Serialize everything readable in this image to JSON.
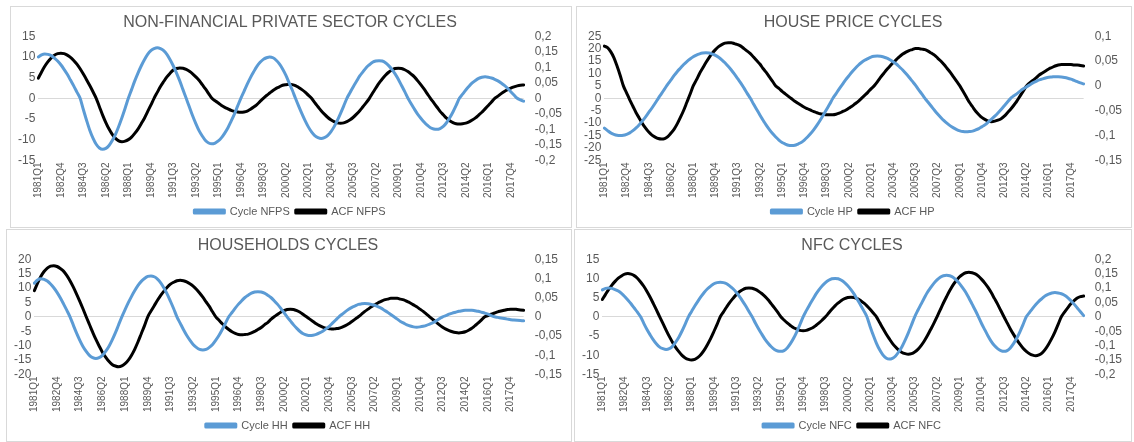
{
  "chart_data": [
    {
      "type": "line",
      "title": "NON-FINANCIAL PRIVATE SECTOR CYCLES",
      "legend": "bottom",
      "marker": "none",
      "categories": [
        "1981Q1",
        null,
        null,
        null,
        null,
        null,
        null,
        "1982Q4",
        null,
        null,
        null,
        null,
        null,
        null,
        "1984Q3",
        null,
        null,
        null,
        null,
        null,
        null,
        "1986Q2",
        null,
        null,
        null,
        null,
        null,
        null,
        "1988Q1",
        null,
        null,
        null,
        null,
        null,
        null,
        "1989Q4",
        null,
        null,
        null,
        null,
        null,
        null,
        "1991Q3",
        null,
        null,
        null,
        null,
        null,
        null,
        "1993Q2",
        null,
        null,
        null,
        null,
        null,
        null,
        "1995Q1",
        null,
        null,
        null,
        null,
        null,
        null,
        "1996Q4",
        null,
        null,
        null,
        null,
        null,
        null,
        "1998Q3",
        null,
        null,
        null,
        null,
        null,
        null,
        "2000Q2",
        null,
        null,
        null,
        null,
        null,
        null,
        "2002Q1",
        null,
        null,
        null,
        null,
        null,
        null,
        "2003Q4",
        null,
        null,
        null,
        null,
        null,
        null,
        "2005Q3",
        null,
        null,
        null,
        null,
        null,
        null,
        "2007Q2",
        null,
        null,
        null,
        null,
        null,
        null,
        "2009Q1",
        null,
        null,
        null,
        null,
        null,
        null,
        "2010Q4",
        null,
        null,
        null,
        null,
        null,
        null,
        "2012Q3",
        null,
        null,
        null,
        null,
        null,
        null,
        "2014Q2",
        null,
        null,
        null,
        null,
        null,
        null,
        "2016Q1",
        null,
        null,
        null,
        null,
        null,
        null,
        "2017Q4",
        null,
        null,
        null,
        null
      ],
      "ylim": [
        -15,
        15
      ],
      "yticks": [
        -15,
        -10,
        -5,
        0,
        5,
        10,
        15
      ],
      "y2lim": [
        -0.2,
        0.2
      ],
      "y2ticks": [
        {
          "value": -0.2,
          "label": "-0,2"
        },
        {
          "value": -0.15,
          "label": "-0,15"
        },
        {
          "value": -0.1,
          "label": "-0,1"
        },
        {
          "value": -0.05,
          "label": "-0,05"
        },
        {
          "value": 0,
          "label": "0"
        },
        {
          "value": 0.05,
          "label": "0,05"
        },
        {
          "value": 0.1,
          "label": "0,1"
        },
        {
          "value": 0.15,
          "label": "0,15"
        },
        {
          "value": 0.2,
          "label": "0,2"
        }
      ],
      "series": [
        {
          "name": "Cycle NFPS",
          "color": "#5b9bd5",
          "values": [
            10,
            10.5,
            10.7,
            10.6,
            10.3,
            9.7,
            9.0,
            8.1,
            7.0,
            5.8,
            4.4,
            3.0,
            1.5,
            0,
            -2.7,
            -5.3,
            -7.7,
            -9.6,
            -11.1,
            -12.0,
            -12.3,
            -12.1,
            -11.4,
            -10.2,
            -8.7,
            -6.8,
            -4.7,
            -2.4,
            0,
            2.1,
            4.2,
            6.1,
            7.8,
            9.3,
            10.6,
            11.5,
            12.0,
            12.2,
            12.0,
            11.5,
            10.6,
            9.3,
            7.8,
            6.1,
            4.2,
            2.1,
            0,
            -2.1,
            -4.2,
            -6.1,
            -7.8,
            -9.1,
            -10.2,
            -10.8,
            -11,
            -10.8,
            -10.3,
            -9.5,
            -8.4,
            -7.1,
            -5.5,
            -3.8,
            -1.9,
            0,
            1.7,
            3.4,
            5.0,
            6.4,
            7.7,
            8.7,
            9.4,
            9.8,
            10,
            9.8,
            9.2,
            8.3,
            7.1,
            5.6,
            3.8,
            2.0,
            0,
            -1.9,
            -3.7,
            -5.4,
            -6.9,
            -8.1,
            -9.0,
            -9.5,
            -9.7,
            -9.5,
            -9.0,
            -8.1,
            -6.9,
            -5.4,
            -3.7,
            -1.9,
            0,
            1.4,
            2.8,
            4.1,
            5.4,
            6.4,
            7.4,
            8.1,
            8.7,
            9.0,
            9.1,
            9.0,
            8.6,
            7.9,
            7.0,
            5.9,
            4.6,
            3.1,
            1.6,
            0,
            -1.3,
            -2.6,
            -3.8,
            -4.8,
            -5.7,
            -6.5,
            -7.1,
            -7.4,
            -7.5,
            -7.3,
            -6.8,
            -5.9,
            -4.7,
            -3.3,
            -1.7,
            0,
            1.0,
            2.0,
            2.9,
            3.7,
            4.3,
            4.8,
            5.1,
            5.2,
            5.1,
            4.9,
            4.6,
            4.2,
            3.7,
            3.1,
            2.4,
            1.6,
            0.8,
            0,
            -0.4,
            -0.7
          ]
        },
        {
          "name": "ACF NFPS",
          "color": "#000000",
          "axis": "y2",
          "values": [
            0.065,
            0.085,
            0.103,
            0.118,
            0.13,
            0.139,
            0.144,
            0.145,
            0.144,
            0.139,
            0.132,
            0.122,
            0.11,
            0.095,
            0.078,
            0.06,
            0.041,
            0.021,
            0,
            -0.027,
            -0.054,
            -0.078,
            -0.099,
            -0.116,
            -0.129,
            -0.137,
            -0.14,
            -0.138,
            -0.133,
            -0.125,
            -0.113,
            -0.099,
            -0.082,
            -0.064,
            -0.043,
            -0.022,
            0,
            0.019,
            0.038,
            0.054,
            0.069,
            0.081,
            0.091,
            0.096,
            0.098,
            0.097,
            0.093,
            0.087,
            0.079,
            0.069,
            0.058,
            0.044,
            0.03,
            0.015,
            0,
            -0.008,
            -0.015,
            -0.023,
            -0.029,
            -0.034,
            -0.039,
            -0.042,
            -0.044,
            -0.045,
            -0.044,
            -0.041,
            -0.035,
            -0.028,
            -0.02,
            -0.01,
            0,
            0.009,
            0.017,
            0.025,
            0.032,
            0.037,
            0.042,
            0.044,
            0.045,
            0.044,
            0.041,
            0.035,
            0.028,
            0.02,
            0.01,
            0,
            -0.014,
            -0.027,
            -0.04,
            -0.051,
            -0.061,
            -0.069,
            -0.075,
            -0.079,
            -0.08,
            -0.079,
            -0.075,
            -0.069,
            -0.061,
            -0.051,
            -0.04,
            -0.027,
            -0.014,
            0,
            0.017,
            0.033,
            0.049,
            0.062,
            0.074,
            0.084,
            0.091,
            0.096,
            0.097,
            0.096,
            0.092,
            0.086,
            0.078,
            0.069,
            0.057,
            0.044,
            0.03,
            0.015,
            0,
            -0.014,
            -0.028,
            -0.042,
            -0.053,
            -0.064,
            -0.072,
            -0.078,
            -0.082,
            -0.083,
            -0.082,
            -0.08,
            -0.076,
            -0.07,
            -0.063,
            -0.054,
            -0.045,
            -0.034,
            -0.023,
            -0.012,
            0,
            0.007,
            0.015,
            0.022,
            0.028,
            0.033,
            0.037,
            0.04,
            0.042,
            0.043
          ]
        }
      ]
    },
    {
      "type": "line",
      "title": "HOUSE PRICE CYCLES",
      "legend": "bottom",
      "marker": "none",
      "categories": [
        "1981Q1",
        null,
        null,
        null,
        null,
        null,
        null,
        "1982Q4",
        null,
        null,
        null,
        null,
        null,
        null,
        "1984Q3",
        null,
        null,
        null,
        null,
        null,
        null,
        "1986Q2",
        null,
        null,
        null,
        null,
        null,
        null,
        "1988Q1",
        null,
        null,
        null,
        null,
        null,
        null,
        "1989Q4",
        null,
        null,
        null,
        null,
        null,
        null,
        "1991Q3",
        null,
        null,
        null,
        null,
        null,
        null,
        "1993Q2",
        null,
        null,
        null,
        null,
        null,
        null,
        "1995Q1",
        null,
        null,
        null,
        null,
        null,
        null,
        "1996Q4",
        null,
        null,
        null,
        null,
        null,
        null,
        "1998Q3",
        null,
        null,
        null,
        null,
        null,
        null,
        "2000Q2",
        null,
        null,
        null,
        null,
        null,
        null,
        "2002Q1",
        null,
        null,
        null,
        null,
        null,
        null,
        "2003Q4",
        null,
        null,
        null,
        null,
        null,
        null,
        "2005Q3",
        null,
        null,
        null,
        null,
        null,
        null,
        "2007Q2",
        null,
        null,
        null,
        null,
        null,
        null,
        "2009Q1",
        null,
        null,
        null,
        null,
        null,
        null,
        "2010Q4",
        null,
        null,
        null,
        null,
        null,
        null,
        "2012Q3",
        null,
        null,
        null,
        null,
        null,
        null,
        "2014Q2",
        null,
        null,
        null,
        null,
        null,
        null,
        "2016Q1",
        null,
        null,
        null,
        null,
        null,
        null,
        "2017Q4",
        null,
        null,
        null,
        null
      ],
      "ylim": [
        -25,
        25
      ],
      "yticks": [
        -25,
        -20,
        -15,
        -10,
        -5,
        0,
        5,
        10,
        15,
        20,
        25
      ],
      "y2lim": [
        -0.15,
        0.1
      ],
      "y2ticks": [
        {
          "value": -0.15,
          "label": "-0,15"
        },
        {
          "value": -0.1,
          "label": "-0,1"
        },
        {
          "value": -0.05,
          "label": "-0,05"
        },
        {
          "value": 0,
          "label": "0"
        },
        {
          "value": 0.05,
          "label": "0,05"
        },
        {
          "value": 0.1,
          "label": "0,1"
        }
      ],
      "series": [
        {
          "name": "Cycle HP",
          "color": "#5b9bd5",
          "values": [
            -12,
            -13,
            -13.9,
            -14.5,
            -14.9,
            -15,
            -14.9,
            -14.5,
            -13.9,
            -13.0,
            -11.9,
            -10.6,
            -9.1,
            -7.5,
            -5.7,
            -3.9,
            -2.0,
            0,
            1.9,
            3.8,
            5.7,
            7.4,
            9.2,
            10.8,
            12.2,
            13.6,
            14.8,
            15.8,
            16.7,
            17.4,
            17.9,
            18.2,
            18.3,
            18.2,
            17.8,
            17.3,
            16.5,
            15.5,
            14.3,
            12.9,
            11.4,
            9.7,
            7.9,
            6.1,
            4.1,
            2.0,
            0,
            -2.3,
            -4.5,
            -6.7,
            -8.8,
            -10.8,
            -12.6,
            -14.2,
            -15.6,
            -16.8,
            -17.8,
            -18.4,
            -18.9,
            -19,
            -18.9,
            -18.4,
            -17.8,
            -16.8,
            -15.6,
            -14.2,
            -12.6,
            -10.8,
            -8.8,
            -6.7,
            -4.5,
            -2.3,
            0,
            1.9,
            3.8,
            5.6,
            7.4,
            9.0,
            10.6,
            12.0,
            13.3,
            14.4,
            15.3,
            16.0,
            16.6,
            16.9,
            17,
            16.9,
            16.6,
            16.2,
            15.5,
            14.7,
            13.8,
            12.6,
            11.4,
            10.0,
            8.5,
            6.9,
            5.3,
            3.5,
            1.8,
            0,
            -1.6,
            -3.2,
            -4.8,
            -6.3,
            -7.7,
            -9.0,
            -10.1,
            -11.1,
            -11.9,
            -12.6,
            -13.1,
            -13.4,
            -13.5,
            -13.4,
            -13.2,
            -12.7,
            -12.2,
            -11.4,
            -10.6,
            -9.5,
            -8.4,
            -7.2,
            -5.9,
            -4.5,
            -3.0,
            -1.5,
            0,
            1.0,
            1.9,
            2.9,
            3.8,
            4.6,
            5.4,
            6.2,
            6.8,
            7.4,
            7.8,
            8.2,
            8.5,
            8.6,
            8.7,
            8.7,
            8.6,
            8.4,
            8.1,
            7.7,
            7.2,
            6.7,
            6.2,
            5.8
          ]
        },
        {
          "name": "ACF HP",
          "color": "#000000",
          "axis": "y2",
          "values": [
            0.08,
            0.077,
            0.069,
            0.057,
            0.04,
            0.021,
            0,
            -0.014,
            -0.028,
            -0.041,
            -0.054,
            -0.065,
            -0.076,
            -0.085,
            -0.093,
            -0.099,
            -0.103,
            -0.106,
            -0.107,
            -0.106,
            -0.102,
            -0.095,
            -0.087,
            -0.076,
            -0.063,
            -0.049,
            -0.033,
            -0.017,
            0,
            0.012,
            0.025,
            0.036,
            0.047,
            0.057,
            0.066,
            0.073,
            0.079,
            0.083,
            0.086,
            0.087,
            0.087,
            0.085,
            0.083,
            0.08,
            0.075,
            0.07,
            0.065,
            0.058,
            0.051,
            0.044,
            0.035,
            0.027,
            0.018,
            0.009,
            0,
            -0.005,
            -0.011,
            -0.016,
            -0.021,
            -0.026,
            -0.031,
            -0.035,
            -0.039,
            -0.043,
            -0.046,
            -0.049,
            -0.052,
            -0.054,
            -0.056,
            -0.057,
            -0.058,
            -0.058,
            -0.058,
            -0.057,
            -0.055,
            -0.052,
            -0.049,
            -0.045,
            -0.041,
            -0.036,
            -0.031,
            -0.025,
            -0.019,
            -0.013,
            -0.006,
            0,
            0.008,
            0.017,
            0.025,
            0.033,
            0.04,
            0.047,
            0.053,
            0.059,
            0.064,
            0.068,
            0.071,
            0.073,
            0.075,
            0.075,
            0.074,
            0.073,
            0.07,
            0.066,
            0.062,
            0.056,
            0.05,
            0.043,
            0.035,
            0.027,
            0.018,
            0.009,
            0,
            -0.011,
            -0.022,
            -0.033,
            -0.042,
            -0.051,
            -0.058,
            -0.064,
            -0.068,
            -0.071,
            -0.072,
            -0.071,
            -0.069,
            -0.066,
            -0.061,
            -0.054,
            -0.047,
            -0.039,
            -0.03,
            -0.02,
            -0.01,
            0,
            0.006,
            0.011,
            0.016,
            0.022,
            0.026,
            0.03,
            0.034,
            0.037,
            0.04,
            0.042,
            0.043,
            0.043,
            0.043,
            0.043,
            0.042,
            0.042,
            0.041,
            0.04
          ]
        }
      ]
    },
    {
      "type": "line",
      "title": "HOUSEHOLDS CYCLES",
      "legend": "bottom",
      "marker": "none",
      "categories": [
        "1981Q1",
        null,
        null,
        null,
        null,
        null,
        null,
        "1982Q4",
        null,
        null,
        null,
        null,
        null,
        null,
        "1984Q3",
        null,
        null,
        null,
        null,
        null,
        null,
        "1986Q2",
        null,
        null,
        null,
        null,
        null,
        null,
        "1988Q1",
        null,
        null,
        null,
        null,
        null,
        null,
        "1989Q4",
        null,
        null,
        null,
        null,
        null,
        null,
        "1991Q3",
        null,
        null,
        null,
        null,
        null,
        null,
        "1993Q2",
        null,
        null,
        null,
        null,
        null,
        null,
        "1995Q1",
        null,
        null,
        null,
        null,
        null,
        null,
        "1996Q4",
        null,
        null,
        null,
        null,
        null,
        null,
        "1998Q3",
        null,
        null,
        null,
        null,
        null,
        null,
        "2000Q2",
        null,
        null,
        null,
        null,
        null,
        null,
        "2002Q1",
        null,
        null,
        null,
        null,
        null,
        null,
        "2003Q4",
        null,
        null,
        null,
        null,
        null,
        null,
        "2005Q3",
        null,
        null,
        null,
        null,
        null,
        null,
        "2007Q2",
        null,
        null,
        null,
        null,
        null,
        null,
        "2009Q1",
        null,
        null,
        null,
        null,
        null,
        null,
        "2010Q4",
        null,
        null,
        null,
        null,
        null,
        null,
        "2012Q3",
        null,
        null,
        null,
        null,
        null,
        null,
        "2014Q2",
        null,
        null,
        null,
        null,
        null,
        null,
        "2016Q1",
        null,
        null,
        null,
        null,
        null,
        null,
        "2017Q4",
        null,
        null,
        null,
        null
      ],
      "ylim": [
        -20,
        20
      ],
      "yticks": [
        -20,
        -15,
        -10,
        -5,
        0,
        5,
        10,
        15,
        20
      ],
      "y2lim": [
        -0.15,
        0.15
      ],
      "y2ticks": [
        {
          "value": -0.15,
          "label": "-0,15"
        },
        {
          "value": -0.1,
          "label": "-0,1"
        },
        {
          "value": -0.05,
          "label": "-0,05"
        },
        {
          "value": 0,
          "label": "0"
        },
        {
          "value": 0.05,
          "label": "0,05"
        },
        {
          "value": 0.1,
          "label": "0,1"
        },
        {
          "value": 0.15,
          "label": "0,15"
        }
      ],
      "series": [
        {
          "name": "Cycle HH",
          "color": "#5b9bd5",
          "values": [
            11.7,
            12.8,
            13.2,
            13.0,
            12.4,
            11.4,
            10.1,
            8.5,
            6.6,
            4.5,
            2.3,
            0,
            -2.8,
            -5.6,
            -8.1,
            -10.3,
            -12.0,
            -13.4,
            -14.2,
            -14.5,
            -14.2,
            -13.4,
            -12.0,
            -10.3,
            -8.1,
            -5.6,
            -2.8,
            0,
            2.5,
            4.9,
            7.1,
            9.1,
            10.9,
            12.3,
            13.3,
            14.0,
            14.2,
            13.9,
            13.1,
            11.8,
            10.0,
            7.9,
            5.4,
            2.8,
            0,
            -2.2,
            -4.4,
            -6.4,
            -8.1,
            -9.6,
            -10.6,
            -11.3,
            -11.5,
            -11.3,
            -10.6,
            -9.6,
            -8.1,
            -6.4,
            -4.4,
            -2.2,
            0,
            1.5,
            3.0,
            4.4,
            5.6,
            6.7,
            7.5,
            8.2,
            8.6,
            8.7,
            8.6,
            8.2,
            7.5,
            6.7,
            5.6,
            4.4,
            3.0,
            1.5,
            0,
            -1.4,
            -2.8,
            -4.0,
            -5.1,
            -5.9,
            -6.3,
            -6.5,
            -6.4,
            -6.1,
            -5.6,
            -5.0,
            -4.2,
            -3.3,
            -2.2,
            -1.1,
            0,
            0.9,
            1.8,
            2.6,
            3.3,
            3.8,
            4.3,
            4.5,
            4.6,
            4.5,
            4.3,
            4.0,
            3.5,
            3.0,
            2.3,
            1.6,
            0.8,
            0,
            -0.8,
            -1.6,
            -2.2,
            -2.8,
            -3.2,
            -3.5,
            -3.6,
            -3.5,
            -3.3,
            -3.0,
            -2.5,
            -2.0,
            -1.4,
            -0.7,
            0,
            0.4,
            0.9,
            1.3,
            1.6,
            1.9,
            2.1,
            2.3,
            2.3,
            2.3,
            2.1,
            1.9,
            1.6,
            1.3,
            0.9,
            0.4,
            0,
            -0.2,
            -0.4,
            -0.6,
            -0.8,
            -1.0,
            -1.1,
            -1.2,
            -1.3,
            -1.4
          ]
        },
        {
          "name": "ACF HH",
          "color": "#000000",
          "axis": "y2",
          "values": [
            0.068,
            0.088,
            0.105,
            0.118,
            0.127,
            0.132,
            0.133,
            0.131,
            0.126,
            0.119,
            0.108,
            0.094,
            0.078,
            0.06,
            0.041,
            0.021,
            0,
            -0.02,
            -0.04,
            -0.059,
            -0.076,
            -0.092,
            -0.105,
            -0.116,
            -0.124,
            -0.128,
            -0.13,
            -0.128,
            -0.122,
            -0.113,
            -0.1,
            -0.084,
            -0.065,
            -0.044,
            -0.023,
            0,
            0.015,
            0.029,
            0.043,
            0.056,
            0.067,
            0.077,
            0.085,
            0.09,
            0.094,
            0.095,
            0.094,
            0.091,
            0.086,
            0.08,
            0.072,
            0.062,
            0.051,
            0.039,
            0.027,
            0.013,
            0,
            -0.009,
            -0.018,
            -0.026,
            -0.033,
            -0.039,
            -0.043,
            -0.046,
            -0.047,
            -0.046,
            -0.045,
            -0.042,
            -0.038,
            -0.033,
            -0.028,
            -0.021,
            -0.015,
            -0.007,
            0,
            0.006,
            0.012,
            0.016,
            0.019,
            0.02,
            0.019,
            0.016,
            0.012,
            0.006,
            0,
            -0.006,
            -0.012,
            -0.018,
            -0.023,
            -0.027,
            -0.03,
            -0.031,
            -0.032,
            -0.031,
            -0.03,
            -0.027,
            -0.023,
            -0.018,
            -0.012,
            -0.006,
            0,
            0.007,
            0.014,
            0.02,
            0.026,
            0.031,
            0.036,
            0.04,
            0.044,
            0.046,
            0.048,
            0.048,
            0.048,
            0.046,
            0.044,
            0.04,
            0.036,
            0.031,
            0.026,
            0.02,
            0.014,
            0.007,
            0,
            -0.007,
            -0.014,
            -0.021,
            -0.027,
            -0.032,
            -0.036,
            -0.039,
            -0.041,
            -0.042,
            -0.041,
            -0.039,
            -0.035,
            -0.03,
            -0.023,
            -0.016,
            -0.008,
            0,
            0.003,
            0.007,
            0.01,
            0.013,
            0.015,
            0.017,
            0.019,
            0.02,
            0.02,
            0.019,
            0.018,
            0.017
          ]
        }
      ]
    },
    {
      "type": "line",
      "title": "NFC CYCLES",
      "legend": "bottom",
      "marker": "none",
      "categories": [
        "1981Q1",
        null,
        null,
        null,
        null,
        null,
        null,
        "1982Q4",
        null,
        null,
        null,
        null,
        null,
        null,
        "1984Q3",
        null,
        null,
        null,
        null,
        null,
        null,
        "1986Q2",
        null,
        null,
        null,
        null,
        null,
        null,
        "1988Q1",
        null,
        null,
        null,
        null,
        null,
        null,
        "1989Q4",
        null,
        null,
        null,
        null,
        null,
        null,
        "1991Q3",
        null,
        null,
        null,
        null,
        null,
        null,
        "1993Q2",
        null,
        null,
        null,
        null,
        null,
        null,
        "1995Q1",
        null,
        null,
        null,
        null,
        null,
        null,
        "1996Q4",
        null,
        null,
        null,
        null,
        null,
        null,
        "1998Q3",
        null,
        null,
        null,
        null,
        null,
        null,
        "2000Q2",
        null,
        null,
        null,
        null,
        null,
        null,
        "2002Q1",
        null,
        null,
        null,
        null,
        null,
        null,
        "2003Q4",
        null,
        null,
        null,
        null,
        null,
        null,
        "2005Q3",
        null,
        null,
        null,
        null,
        null,
        null,
        "2007Q2",
        null,
        null,
        null,
        null,
        null,
        null,
        "2009Q1",
        null,
        null,
        null,
        null,
        null,
        null,
        "2010Q4",
        null,
        null,
        null,
        null,
        null,
        null,
        "2012Q3",
        null,
        null,
        null,
        null,
        null,
        null,
        "2014Q2",
        null,
        null,
        null,
        null,
        null,
        null,
        "2016Q1",
        null,
        null,
        null,
        null,
        null,
        null,
        "2017Q4",
        null,
        null,
        null,
        null
      ],
      "ylim": [
        -15,
        15
      ],
      "yticks": [
        -15,
        -10,
        -5,
        0,
        5,
        10,
        15
      ],
      "y2lim": [
        -0.2,
        0.2
      ],
      "y2ticks": [
        {
          "value": -0.2,
          "label": "-0,2"
        },
        {
          "value": -0.15,
          "label": "-0,15"
        },
        {
          "value": -0.1,
          "label": "-0,1"
        },
        {
          "value": -0.05,
          "label": "-0,05"
        },
        {
          "value": 0,
          "label": "0"
        },
        {
          "value": 0.05,
          "label": "0,05"
        },
        {
          "value": 0.1,
          "label": "0,1"
        },
        {
          "value": 0.15,
          "label": "0,15"
        },
        {
          "value": 0.2,
          "label": "0,2"
        }
      ],
      "series": [
        {
          "name": "Cycle NFC",
          "color": "#5b9bd5",
          "values": [
            7,
            7.4,
            7.5,
            7.4,
            7.1,
            6.7,
            6.1,
            5.3,
            4.4,
            3.4,
            2.3,
            1.2,
            0,
            -1.7,
            -3.3,
            -4.7,
            -6.0,
            -7.1,
            -7.9,
            -8.3,
            -8.5,
            -8.3,
            -7.7,
            -6.6,
            -5.3,
            -3.7,
            -1.9,
            0,
            1.4,
            2.8,
            4.1,
            5.3,
            6.4,
            7.3,
            8.0,
            8.6,
            8.9,
            9,
            8.9,
            8.6,
            8.0,
            7.3,
            6.4,
            5.3,
            4.1,
            2.8,
            1.4,
            0,
            -1.6,
            -3.1,
            -4.5,
            -5.8,
            -6.9,
            -7.8,
            -8.5,
            -8.9,
            -9,
            -8.8,
            -8.1,
            -7.0,
            -5.6,
            -3.9,
            -2.0,
            0,
            1.6,
            3.1,
            4.5,
            5.9,
            7.1,
            8.1,
            8.9,
            9.5,
            9.9,
            10,
            9.9,
            9.5,
            8.9,
            8.1,
            7.1,
            5.9,
            4.5,
            3.1,
            1.6,
            0,
            -2.5,
            -4.8,
            -6.9,
            -8.6,
            -9.9,
            -10.7,
            -11,
            -10.8,
            -10.2,
            -9.1,
            -7.8,
            -6.1,
            -4.2,
            -2.1,
            0,
            1.7,
            3.3,
            4.9,
            6.4,
            7.6,
            8.7,
            9.6,
            10.3,
            10.7,
            10.8,
            10.7,
            10.3,
            9.6,
            8.7,
            7.6,
            6.4,
            4.9,
            3.3,
            1.7,
            0,
            -1.8,
            -3.4,
            -5.0,
            -6.4,
            -7.5,
            -8.3,
            -8.8,
            -9,
            -8.8,
            -8.1,
            -7.0,
            -5.6,
            -3.9,
            -2.0,
            0,
            1.1,
            2.2,
            3.2,
            4.1,
            4.8,
            5.5,
            5.9,
            6.2,
            6.3,
            6.2,
            6.0,
            5.6,
            5.0,
            4.2,
            3.3,
            2.3,
            1.3,
            0.3
          ]
        },
        {
          "name": "ACF NFC",
          "color": "#000000",
          "axis": "y2",
          "values": [
            0.06,
            0.078,
            0.095,
            0.11,
            0.123,
            0.134,
            0.142,
            0.148,
            0.15,
            0.148,
            0.143,
            0.134,
            0.121,
            0.106,
            0.088,
            0.068,
            0.046,
            0.023,
            0,
            -0.023,
            -0.046,
            -0.068,
            -0.088,
            -0.106,
            -0.121,
            -0.134,
            -0.143,
            -0.148,
            -0.15,
            -0.148,
            -0.141,
            -0.13,
            -0.115,
            -0.096,
            -0.075,
            -0.051,
            -0.026,
            0,
            0.017,
            0.034,
            0.05,
            0.064,
            0.077,
            0.087,
            0.094,
            0.099,
            0.1,
            0.099,
            0.095,
            0.089,
            0.081,
            0.071,
            0.059,
            0.045,
            0.031,
            0.016,
            0,
            -0.011,
            -0.021,
            -0.03,
            -0.038,
            -0.043,
            -0.047,
            -0.048,
            -0.047,
            -0.043,
            -0.038,
            -0.03,
            -0.021,
            -0.011,
            0,
            0.013,
            0.026,
            0.038,
            0.048,
            0.057,
            0.063,
            0.067,
            0.068,
            0.067,
            0.063,
            0.057,
            0.048,
            0.038,
            0.026,
            0.013,
            0,
            -0.02,
            -0.04,
            -0.059,
            -0.076,
            -0.092,
            -0.105,
            -0.116,
            -0.124,
            -0.128,
            -0.13,
            -0.128,
            -0.122,
            -0.113,
            -0.1,
            -0.084,
            -0.065,
            -0.044,
            -0.023,
            0,
            0.024,
            0.048,
            0.07,
            0.091,
            0.11,
            0.125,
            0.138,
            0.147,
            0.153,
            0.155,
            0.153,
            0.149,
            0.141,
            0.13,
            0.117,
            0.102,
            0.084,
            0.064,
            0.044,
            0.022,
            0,
            -0.021,
            -0.042,
            -0.061,
            -0.079,
            -0.095,
            -0.109,
            -0.12,
            -0.128,
            -0.133,
            -0.135,
            -0.132,
            -0.125,
            -0.112,
            -0.095,
            -0.075,
            -0.052,
            -0.026,
            0,
            0.016,
            0.031,
            0.045,
            0.056,
            0.065,
            0.07,
            0.072
          ]
        }
      ]
    }
  ]
}
